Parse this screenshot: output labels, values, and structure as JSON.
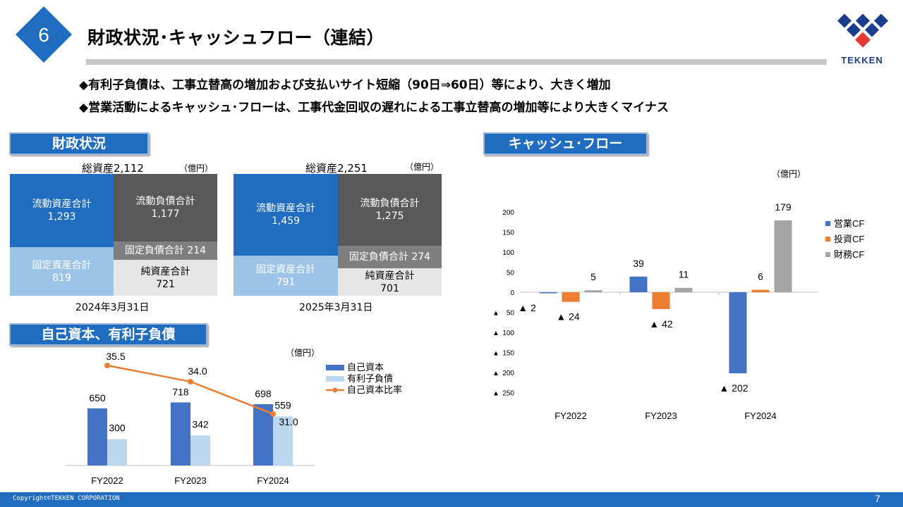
{
  "header": {
    "section_number": "6",
    "title": "財政状況･キャッシュフロー（連結）",
    "logo_text": "TEKKEN"
  },
  "bullets": [
    "◆有利子負債は、工事立替高の増加および支払いサイト短縮（90日⇒60日）等により、大きく増加",
    "◆営業活動によるキャッシュ･フローは、工事代金回収の遅れによる工事立替高の増加等により大きくマイナス"
  ],
  "financial_position": {
    "tab_label": "財政状況",
    "unit": "（億円）",
    "sheets": [
      {
        "total_label": "総資産2,112",
        "date": "2024年3月31日",
        "current_assets": {
          "label": "流動資産合計",
          "value": "1,293"
        },
        "fixed_assets": {
          "label": "固定資産合計",
          "value": "819"
        },
        "current_liabilities": {
          "label": "流動負債合計",
          "value": "1,177"
        },
        "fixed_liabilities": {
          "label": "固定負債合計 214"
        },
        "net_assets": {
          "label": "純資産合計",
          "value": "721"
        }
      },
      {
        "total_label": "総資産2,251",
        "date": "2025年3月31日",
        "current_assets": {
          "label": "流動資産合計",
          "value": "1,459"
        },
        "fixed_assets": {
          "label": "固定資産合計",
          "value": "791"
        },
        "current_liabilities": {
          "label": "流動負債合計",
          "value": "1,275"
        },
        "fixed_liabilities": {
          "label": "固定負債合計 274"
        },
        "net_assets": {
          "label": "純資産合計",
          "value": "701"
        }
      }
    ]
  },
  "equity_section": {
    "tab_label": "自己資本、有利子負債",
    "unit": "（億円）"
  },
  "cashflow_section": {
    "tab_label": "キャッシュ･フロー",
    "unit": "（億円）"
  },
  "chart_data": [
    {
      "type": "bar",
      "categories": [
        "FY2022",
        "FY2023",
        "FY2024"
      ],
      "series": [
        {
          "name": "自己資本",
          "values": [
            650,
            718,
            698
          ],
          "color": "#4472c4",
          "labels": [
            "650",
            "718",
            "698"
          ]
        },
        {
          "name": "有利子負債",
          "values": [
            300,
            342,
            559
          ],
          "color": "#bdd7ee",
          "labels": [
            "300",
            "342",
            "559"
          ]
        },
        {
          "name": "自己資本比率",
          "type": "line",
          "values": [
            35.5,
            34.0,
            31.0
          ],
          "color": "#ed7d31",
          "labels": [
            "35.5",
            "34.0",
            "31.0"
          ]
        }
      ],
      "legend_position": "top-right"
    },
    {
      "type": "bar",
      "categories": [
        "FY2022",
        "FY2023",
        "FY2024"
      ],
      "series": [
        {
          "name": "営業CF",
          "values": [
            -2,
            39,
            -202
          ],
          "color": "#4472c4",
          "labels": [
            "▲ 2",
            "39",
            "▲ 202"
          ]
        },
        {
          "name": "投資CF",
          "values": [
            -24,
            -42,
            6
          ],
          "color": "#ed7d31",
          "labels": [
            "▲ 24",
            "▲ 42",
            "6"
          ]
        },
        {
          "name": "財務CF",
          "values": [
            5,
            11,
            179
          ],
          "color": "#a5a5a5",
          "labels": [
            "5",
            "11",
            "179"
          ]
        }
      ],
      "ylim": [
        -250,
        200
      ],
      "yticks": [
        200,
        150,
        100,
        50,
        0,
        -50,
        -100,
        -150,
        -200,
        -250
      ],
      "ytick_labels": [
        "200",
        "150",
        "100",
        "50",
        "0",
        "▲ 50",
        "▲ 100",
        "▲ 150",
        "▲ 200",
        "▲ 250"
      ],
      "grid": false,
      "legend_position": "right"
    }
  ],
  "footer": {
    "copyright": "Copyright©TEKKEN CORPORATION",
    "page_number": "7"
  }
}
